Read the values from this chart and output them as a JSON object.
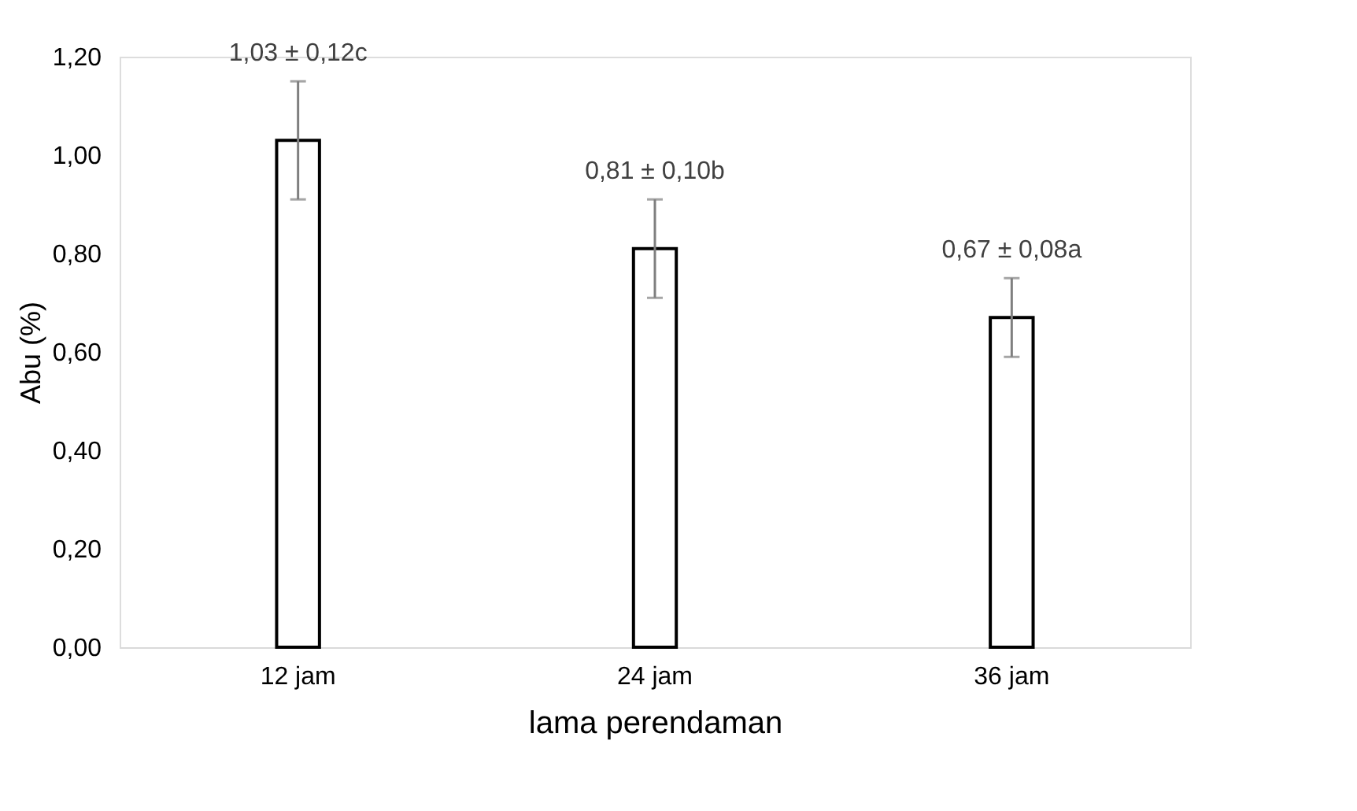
{
  "chart_data": {
    "type": "bar",
    "xlabel": "lama perendaman",
    "ylabel": "Abu (%)",
    "categories": [
      "12 jam",
      "24 jam",
      "36 jam"
    ],
    "values": [
      1.03,
      0.81,
      0.67
    ],
    "errors": [
      0.12,
      0.1,
      0.08
    ],
    "value_labels": [
      "1,03 ± 0,12c",
      "0,81 ± 0,10b",
      "0,67 ± 0,08a"
    ],
    "color": "#ffffff",
    "ylim": [
      0,
      1.2
    ],
    "yticks": [
      {
        "value": 0,
        "label": "0,00"
      },
      {
        "value": 0.2,
        "label": "0,20"
      },
      {
        "value": 0.4,
        "label": "0,40"
      },
      {
        "value": 0.6,
        "label": "0,60"
      },
      {
        "value": 0.8,
        "label": "0,80"
      },
      {
        "value": 1.0,
        "label": "1,00"
      },
      {
        "value": 1.2,
        "label": "1,20"
      }
    ],
    "grid": false
  }
}
